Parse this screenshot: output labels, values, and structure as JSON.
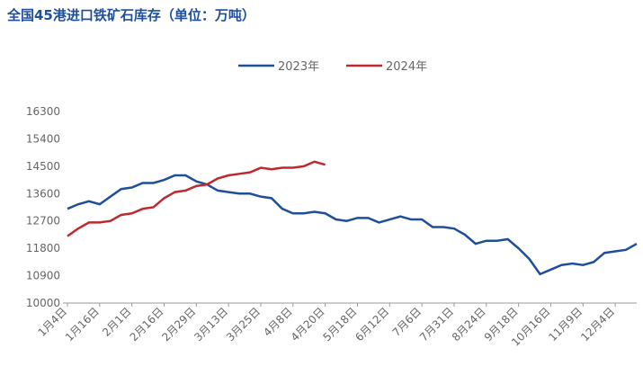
{
  "chart_data": {
    "type": "line",
    "title": "全国45港进口铁矿石库存（单位：万吨）",
    "categories": [
      "1月4日",
      null,
      null,
      "1月16日",
      null,
      null,
      "2月1日",
      null,
      null,
      "2月16日",
      null,
      null,
      "2月29日",
      null,
      null,
      "3月13日",
      null,
      null,
      "3月25日",
      null,
      null,
      "4月8日",
      null,
      null,
      "4月20日",
      null,
      null,
      "5月18日",
      null,
      null,
      "6月12日",
      null,
      null,
      "7月6日",
      null,
      null,
      "7月31日",
      null,
      null,
      "8月24日",
      null,
      null,
      "9月18日",
      null,
      null,
      "10月16日",
      null,
      null,
      "11月9日",
      null,
      null,
      "12月4日",
      null,
      null
    ],
    "series": [
      {
        "name": "2023年",
        "color": "#1f4e9c",
        "values": [
          13100,
          13250,
          13350,
          13250,
          13500,
          13750,
          13800,
          13950,
          13950,
          14050,
          14200,
          14200,
          14000,
          13900,
          13700,
          13650,
          13600,
          13600,
          13500,
          13450,
          13100,
          12950,
          12950,
          13000,
          12950,
          12750,
          12700,
          12800,
          12800,
          12650,
          12750,
          12850,
          12750,
          12750,
          12500,
          12500,
          12450,
          12250,
          11950,
          12050,
          12050,
          12100,
          11800,
          11450,
          10950,
          11100,
          11250,
          11300,
          11250,
          11350,
          11650,
          11700,
          11750,
          11950
        ]
      },
      {
        "name": "2024年",
        "color": "#c0282d",
        "values": [
          12200,
          12450,
          12650,
          12650,
          12700,
          12900,
          12950,
          13100,
          13150,
          13450,
          13650,
          13700,
          13850,
          13900,
          14100,
          14200,
          14250,
          14300,
          14450,
          14400,
          14450,
          14450,
          14500,
          14650,
          14550,
          null,
          null,
          null,
          null,
          null,
          null,
          null,
          null,
          null,
          null,
          null,
          null,
          null,
          null,
          null,
          null,
          null,
          null,
          null,
          null,
          null,
          null,
          null,
          null,
          null,
          null,
          null,
          null,
          null
        ]
      }
    ],
    "ylim": [
      10000,
      16300
    ],
    "yticks": [
      10000,
      10900,
      11800,
      12700,
      13600,
      14500,
      15400,
      16300
    ],
    "grid": false,
    "legend": "top"
  }
}
